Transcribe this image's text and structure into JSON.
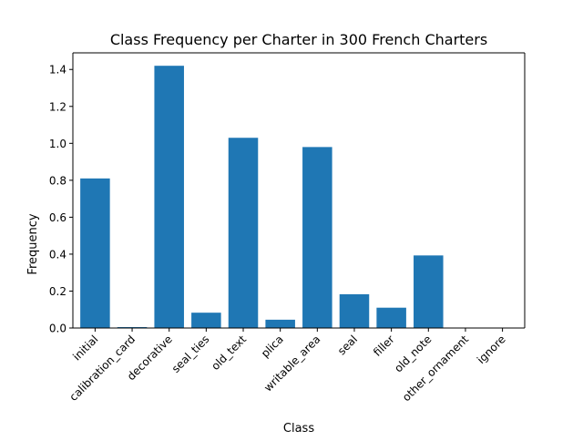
{
  "chart_data": {
    "type": "bar",
    "title": "Class Frequency per Charter in 300 French Charters",
    "xlabel": "Class",
    "ylabel": "Frequency",
    "categories": [
      "initial",
      "calibration_card",
      "decorative",
      "seal_ties",
      "old_text",
      "plica",
      "writable_area",
      "seal",
      "filler",
      "old_note",
      "other_ornament",
      "ignore"
    ],
    "values": [
      0.81,
      0.005,
      1.42,
      0.083,
      1.03,
      0.045,
      0.98,
      0.183,
      0.11,
      0.393,
      0.0,
      0.0
    ],
    "ylim": [
      0,
      1.49
    ],
    "yticks": [
      0.0,
      0.2,
      0.4,
      0.6,
      0.8,
      1.0,
      1.2,
      1.4
    ],
    "ytick_labels": [
      "0.0",
      "0.2",
      "0.4",
      "0.6",
      "0.8",
      "1.0",
      "1.2",
      "1.4"
    ],
    "grid": false,
    "legend": "none",
    "bar_color": "#1f77b4"
  }
}
